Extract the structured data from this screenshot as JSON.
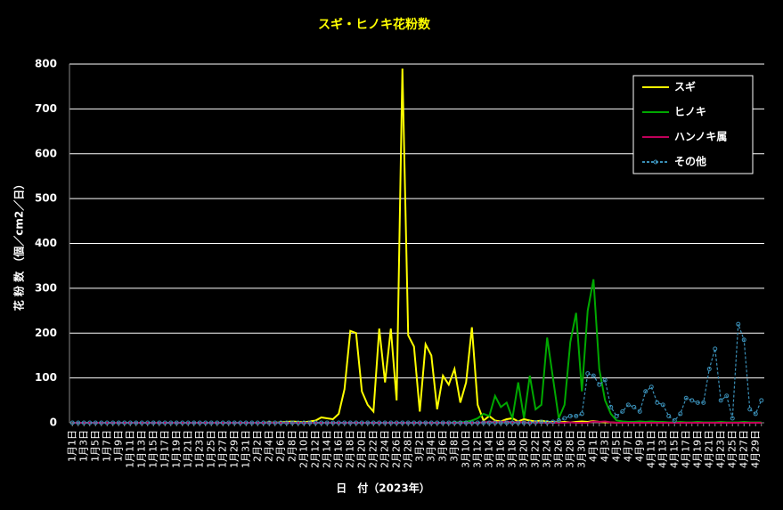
{
  "chart_data": {
    "type": "line",
    "title": "スギ・ヒノキ花粉数",
    "x_label": "日　付（2023年）",
    "y_label": "花 粉 数 （個／cm2／日）",
    "categories": [
      "1月1日",
      null,
      "1月3日",
      null,
      "1月5日",
      null,
      "1月7日",
      null,
      "1月9日",
      null,
      "1月11日",
      null,
      "1月13日",
      null,
      "1月15日",
      null,
      "1月17日",
      null,
      "1月19日",
      null,
      "1月21日",
      null,
      "1月23日",
      null,
      "1月25日",
      null,
      "1月27日",
      null,
      "1月29日",
      null,
      "1月31日",
      null,
      "2月2日",
      null,
      "2月4日",
      null,
      "2月6日",
      null,
      "2月8日",
      null,
      "2月10日",
      null,
      "2月12日",
      null,
      "2月14日",
      null,
      "2月16日",
      null,
      "2月18日",
      null,
      "2月20日",
      null,
      "2月22日",
      null,
      "2月24日",
      null,
      "2月26日",
      null,
      "2月28日",
      null,
      "3月2日",
      null,
      "3月4日",
      null,
      "3月6日",
      null,
      "3月8日",
      null,
      "3月10日",
      null,
      "3月12日",
      null,
      "3月14日",
      null,
      "3月16日",
      null,
      "3月18日",
      null,
      "3月20日",
      null,
      "3月22日",
      null,
      "3月24日",
      null,
      "3月26日",
      null,
      "3月28日",
      null,
      "3月30日",
      null,
      "4月1日",
      null,
      "4月3日",
      null,
      "4月5日",
      null,
      "4月7日",
      null,
      "4月9日",
      null,
      "4月11日",
      null,
      "4月13日",
      null,
      "4月15日",
      null,
      "4月17日",
      null,
      "4月19日",
      null,
      "4月21日",
      null,
      "4月23日",
      null,
      "4月25日",
      null,
      "4月27日",
      null,
      "4月29日",
      null
    ],
    "series": [
      {
        "name": "スギ",
        "color": "#ffff00",
        "values": [
          0,
          0,
          0,
          0,
          0,
          0,
          0,
          0,
          0,
          0,
          0,
          0,
          0,
          0,
          0,
          0,
          0,
          0,
          0,
          0,
          0,
          0,
          0,
          0,
          0,
          0,
          0,
          0,
          0,
          0,
          0,
          0,
          0,
          0,
          1,
          0,
          1,
          2,
          3,
          2,
          1,
          3,
          5,
          12,
          10,
          8,
          20,
          75,
          205,
          200,
          70,
          40,
          25,
          210,
          90,
          210,
          50,
          790,
          195,
          170,
          25,
          175,
          150,
          30,
          105,
          85,
          120,
          45,
          90,
          213,
          40,
          5,
          15,
          5,
          3,
          8,
          10,
          3,
          8,
          5,
          3,
          5,
          2,
          2,
          1,
          2,
          1,
          2,
          3,
          2,
          4,
          2,
          1,
          1,
          0,
          0,
          0,
          0,
          0,
          0,
          0,
          0,
          0,
          0,
          0,
          0,
          0,
          0,
          0,
          0,
          0,
          0,
          0,
          0,
          0,
          0,
          0,
          0,
          0,
          0
        ]
      },
      {
        "name": "ヒノキ",
        "color": "#00a800",
        "values": [
          0,
          0,
          0,
          0,
          0,
          0,
          0,
          0,
          0,
          0,
          0,
          0,
          0,
          0,
          0,
          0,
          0,
          0,
          0,
          0,
          0,
          0,
          0,
          0,
          0,
          0,
          0,
          0,
          0,
          0,
          0,
          0,
          0,
          0,
          0,
          0,
          0,
          0,
          0,
          0,
          0,
          0,
          0,
          0,
          0,
          0,
          0,
          0,
          0,
          0,
          0,
          0,
          0,
          0,
          0,
          0,
          0,
          0,
          0,
          0,
          0,
          0,
          0,
          0,
          0,
          0,
          1,
          1,
          2,
          5,
          10,
          20,
          15,
          60,
          35,
          45,
          10,
          90,
          10,
          105,
          30,
          40,
          190,
          100,
          10,
          40,
          180,
          245,
          70,
          250,
          320,
          120,
          50,
          20,
          5,
          3,
          2,
          2,
          3,
          2,
          3,
          2,
          2,
          1,
          1,
          2,
          1,
          1,
          2,
          1,
          1,
          1,
          2,
          1,
          1,
          1,
          2,
          1,
          1,
          1
        ]
      },
      {
        "name": "ハンノキ属",
        "color": "#c0005a",
        "values": [
          0,
          0,
          0,
          0,
          0,
          0,
          0,
          0,
          0,
          0,
          0,
          0,
          0,
          0,
          0,
          0,
          0,
          0,
          0,
          0,
          0,
          0,
          0,
          0,
          0,
          0,
          0,
          0,
          0,
          0,
          0,
          0,
          0,
          0,
          0,
          0,
          0,
          0,
          0,
          0,
          0,
          0,
          0,
          0,
          0,
          0,
          0,
          0,
          0,
          0,
          0,
          0,
          0,
          0,
          0,
          0,
          0,
          0,
          0,
          0,
          0,
          0,
          0,
          0,
          0,
          0,
          0,
          0,
          0,
          0,
          0,
          1,
          2,
          1,
          2,
          3,
          1,
          2,
          1,
          0,
          1,
          0,
          0,
          0,
          0,
          0,
          1,
          0,
          0,
          0,
          3,
          2,
          3,
          1,
          0,
          0,
          0,
          0,
          0,
          0,
          0,
          0,
          0,
          0,
          0,
          0,
          0,
          0,
          0,
          0,
          0,
          0,
          0,
          0,
          0,
          0,
          0,
          0,
          0,
          0
        ]
      },
      {
        "name": "その他",
        "color": "#3a8fb7",
        "linestyle": "dashed",
        "marker": "circle",
        "values": [
          0,
          0,
          0,
          0,
          0,
          0,
          0,
          0,
          0,
          0,
          0,
          0,
          0,
          0,
          0,
          0,
          0,
          0,
          0,
          0,
          0,
          0,
          0,
          0,
          0,
          0,
          0,
          0,
          0,
          0,
          0,
          0,
          0,
          0,
          0,
          0,
          0,
          0,
          0,
          0,
          0,
          0,
          0,
          0,
          0,
          0,
          0,
          0,
          0,
          0,
          0,
          0,
          0,
          0,
          0,
          0,
          0,
          0,
          0,
          0,
          0,
          0,
          0,
          0,
          0,
          0,
          0,
          0,
          0,
          0,
          0,
          0,
          0,
          0,
          0,
          0,
          0,
          0,
          0,
          0,
          1,
          2,
          1,
          2,
          5,
          10,
          15,
          15,
          20,
          110,
          105,
          85,
          95,
          35,
          15,
          25,
          40,
          35,
          25,
          70,
          80,
          45,
          40,
          15,
          5,
          20,
          55,
          50,
          45,
          45,
          120,
          165,
          50,
          60,
          10,
          220,
          185,
          30,
          20,
          50
        ]
      }
    ],
    "ylim": [
      0,
      800
    ],
    "yticks": [
      0,
      100,
      200,
      300,
      400,
      500,
      600,
      700,
      800
    ],
    "grid": true,
    "legend": "upper right"
  }
}
